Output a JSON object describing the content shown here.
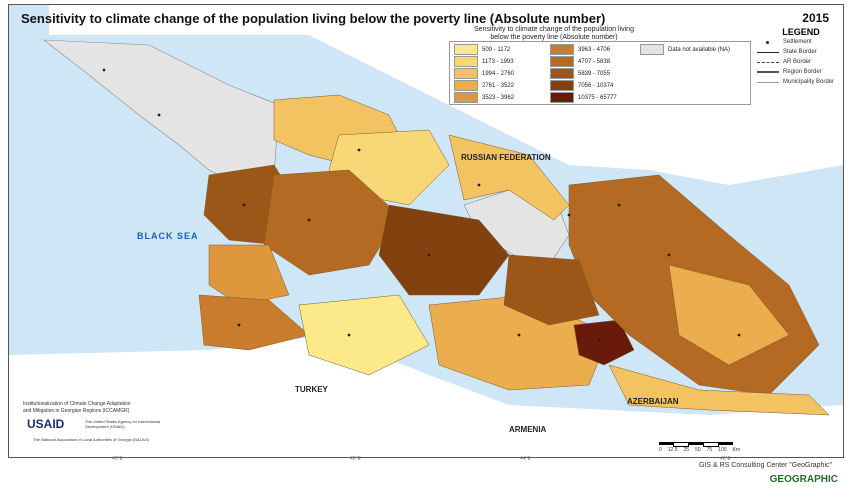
{
  "title": "Sensitivity to climate change of the population living below the poverty line (Absolute number)",
  "year": "2015",
  "legend": {
    "heading": "LEGEND",
    "subtitle_line1": "Sensitivity to climate change of the population living",
    "subtitle_line2": "below the poverty line (Absolute number)",
    "classes": [
      {
        "range": "509 - 1172",
        "color": "#fbe98a"
      },
      {
        "range": "1173 - 1993",
        "color": "#f8d777"
      },
      {
        "range": "1994 - 2760",
        "color": "#f3c261"
      },
      {
        "range": "2761 - 3522",
        "color": "#ebad4e"
      },
      {
        "range": "3523 - 3962",
        "color": "#df973d"
      },
      {
        "range": "3963 - 4706",
        "color": "#c97d2c"
      },
      {
        "range": "4707 - 5838",
        "color": "#b46a22"
      },
      {
        "range": "5839 - 7055",
        "color": "#9c5618"
      },
      {
        "range": "7056 - 10374",
        "color": "#824210"
      },
      {
        "range": "10375 - 65777",
        "color": "#6a1a0a"
      }
    ],
    "na_label": "Data not available (NA)",
    "na_color": "#e4e4e4",
    "symbols": [
      {
        "label": "Settlement"
      },
      {
        "label": "State Border"
      },
      {
        "label": "AR Border"
      },
      {
        "label": "Region Border"
      },
      {
        "label": "Municipality Border"
      }
    ]
  },
  "labels": {
    "black_sea": "BLACK SEA",
    "russia": "RUSSIAN FEDERATION",
    "turkey": "TURKEY",
    "armenia": "ARMENIA",
    "azerbaijan": "AZERBAIJAN"
  },
  "credits": {
    "project_line1": "Institutionalization of Climate Change Adaptation",
    "project_line2": "and Mitigation in Georgian Regions (ICCAMGR)",
    "usaid": "USAID",
    "usaid_sub": "The United States Agency for International Development (USAID)",
    "nalag": "The National Association of Local Authorities of Georgia (NALAG)",
    "consulting": "GIS & RS Consulting Center \"GeoGraphic\"",
    "logo": "GEOGRAPHIC"
  },
  "scale": {
    "ticks": [
      "0",
      "12.5",
      "25",
      "50",
      "75",
      "100"
    ],
    "unit": "Km"
  },
  "coords": [
    "40°E",
    "42°E",
    "44°E",
    "46°E"
  ]
}
